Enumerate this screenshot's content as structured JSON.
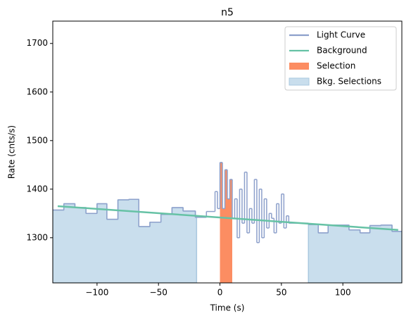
{
  "chart_data": {
    "type": "step",
    "title": "n5",
    "x_label": "Time (s)",
    "y_label": "Rate (cnts/s)",
    "xlim": [
      -136,
      148
    ],
    "ylim": [
      1207,
      1746
    ],
    "xticks": [
      {
        "value": -100,
        "label": "−100"
      },
      {
        "value": -50,
        "label": "−50"
      },
      0,
      50,
      100
    ],
    "yticks": [
      1300,
      1400,
      1500,
      1600,
      1700
    ],
    "legend": "upper right",
    "light_curve": {
      "name": "Light Curve",
      "color": "#8da0cb",
      "bins": [
        -136,
        -127,
        -118,
        -109,
        -100,
        -92,
        -83,
        -74,
        -66,
        -57,
        -48,
        -39,
        -30,
        -20,
        -11,
        -4,
        -2,
        0,
        2,
        4,
        6,
        8,
        10,
        12,
        14,
        16,
        18,
        20,
        22,
        24,
        26,
        28,
        30,
        32,
        34,
        36,
        38,
        40,
        42,
        44,
        46,
        48,
        50,
        52,
        54,
        56,
        72,
        80,
        88,
        105,
        114,
        122,
        131,
        140,
        148
      ],
      "values": [
        1357,
        1370,
        1362,
        1350,
        1370,
        1338,
        1378,
        1379,
        1323,
        1332,
        1348,
        1362,
        1355,
        1342,
        1354,
        1395,
        1360,
        1455,
        1360,
        1440,
        1380,
        1420,
        1340,
        1380,
        1300,
        1400,
        1330,
        1435,
        1310,
        1360,
        1330,
        1420,
        1290,
        1400,
        1300,
        1380,
        1320,
        1350,
        1340,
        1310,
        1370,
        1330,
        1390,
        1320,
        1345,
        1330,
        1327,
        1310,
        1326,
        1316,
        1310,
        1325,
        1326,
        1313
      ]
    },
    "background": {
      "name": "Background",
      "color": "#66c2a5",
      "x": [
        -132,
        145
      ],
      "values": [
        1365,
        1316
      ]
    },
    "selection": {
      "name": "Selection",
      "color": "#fc8d62",
      "range": [
        0,
        10
      ]
    },
    "bkg_selections": {
      "name": "Bkg. Selections",
      "color": "#c9deed",
      "ranges": [
        [
          -136,
          -19
        ],
        [
          72,
          148
        ]
      ]
    }
  }
}
